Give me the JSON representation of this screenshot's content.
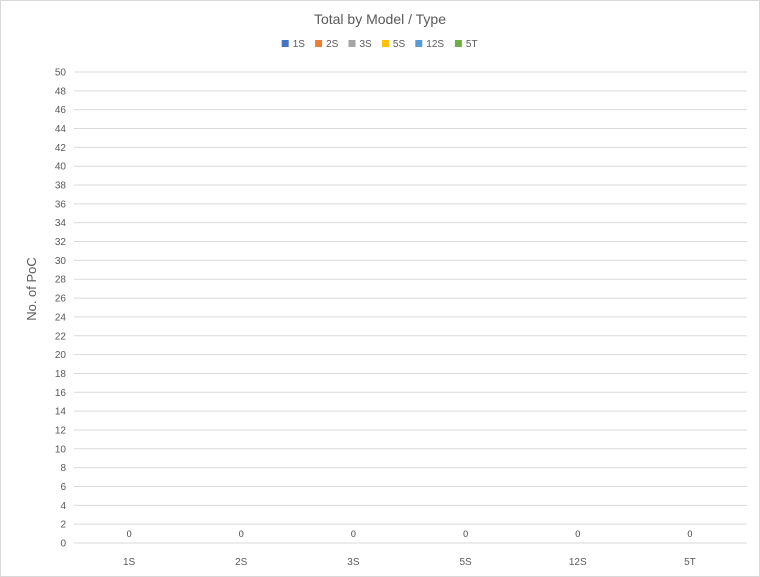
{
  "chart_data": {
    "type": "bar",
    "title": "Total by Model / Type",
    "ylabel": "No. of PoC",
    "xlabel": "",
    "categories": [
      "1S",
      "2S",
      "3S",
      "5S",
      "12S",
      "5T"
    ],
    "series": [
      {
        "name": "1S",
        "color": "#4472c4",
        "values": [
          0,
          null,
          null,
          null,
          null,
          null
        ]
      },
      {
        "name": "2S",
        "color": "#ed7d31",
        "values": [
          null,
          0,
          null,
          null,
          null,
          null
        ]
      },
      {
        "name": "3S",
        "color": "#a5a5a5",
        "values": [
          null,
          null,
          0,
          null,
          null,
          null
        ]
      },
      {
        "name": "5S",
        "color": "#ffc000",
        "values": [
          null,
          null,
          null,
          0,
          null,
          null
        ]
      },
      {
        "name": "12S",
        "color": "#5b9bd5",
        "values": [
          null,
          null,
          null,
          null,
          0,
          null
        ]
      },
      {
        "name": "5T",
        "color": "#70ad47",
        "values": [
          null,
          null,
          null,
          null,
          null,
          0
        ]
      }
    ],
    "data_labels": [
      "0",
      "0",
      "0",
      "0",
      "0",
      "0"
    ],
    "ylim": [
      0,
      50
    ],
    "ytick_step": 2,
    "grid": true,
    "legend_position": "top"
  }
}
